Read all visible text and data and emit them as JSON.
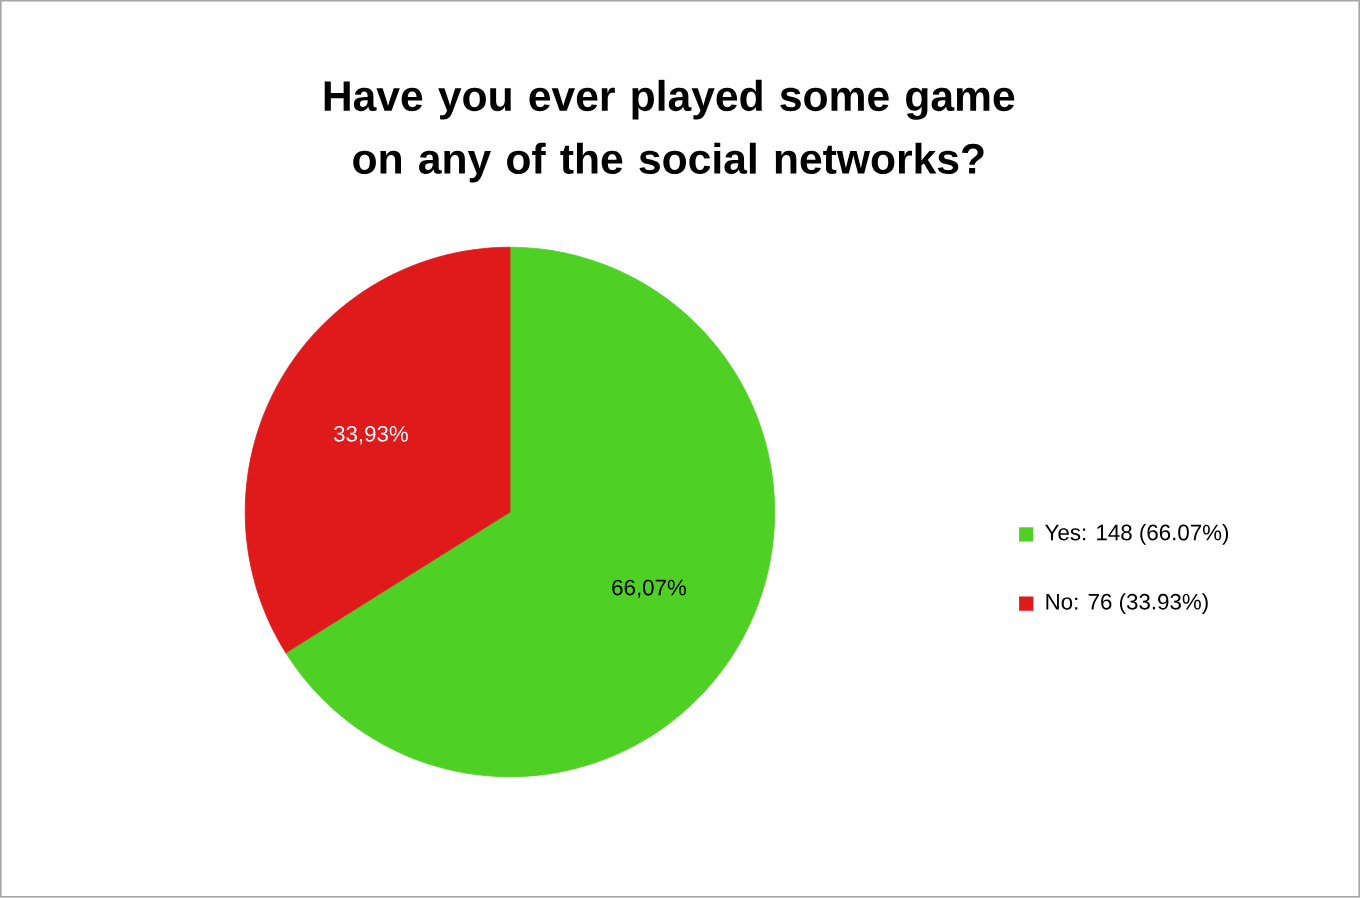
{
  "chart_data": {
    "type": "pie",
    "title": "Have you ever played some game on any of the social networks?",
    "categories": [
      "Yes: 148 (66.07%)",
      "No: 76 (33.93%)"
    ],
    "values": [
      66.07,
      33.93
    ],
    "colors": [
      "#4fd024",
      "#e0191b"
    ],
    "value_labels": [
      "66,07%",
      "33,93%"
    ],
    "legend": "right"
  }
}
